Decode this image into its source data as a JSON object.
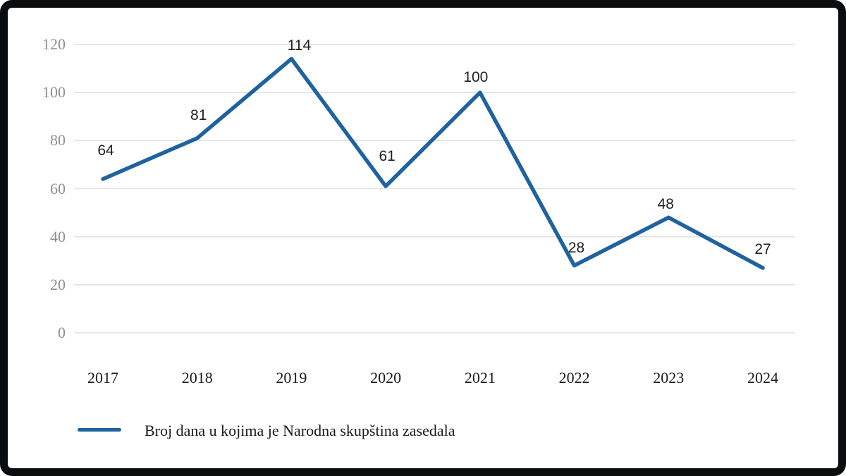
{
  "chart_data": {
    "type": "line",
    "title": "",
    "categories": [
      "2017",
      "2018",
      "2019",
      "2020",
      "2021",
      "2022",
      "2023",
      "2024"
    ],
    "series": [
      {
        "name": "Broj dana u kojima je Narodna skupština zasedala",
        "values": [
          64,
          81,
          114,
          61,
          100,
          28,
          48,
          27
        ]
      }
    ],
    "y_ticks": [
      "120",
      "100",
      "80",
      "60",
      "40",
      "20",
      "0"
    ],
    "ylim": [
      0,
      120
    ],
    "xlabel": "",
    "ylabel": "",
    "grid": "horizontal",
    "legend_position": "bottom-left",
    "colors": {
      "line": "#1e629f",
      "gridline": "#e2e2e2",
      "y_tick_text": "#8e8e8e",
      "x_tick_text": "#1b1b1b",
      "data_label_text": "#212121",
      "legend_text": "#1a1a1a",
      "frame_border": "#0b0c0d",
      "background": "#ffffff"
    }
  },
  "legend": {
    "label": "Broj dana u kojima je Narodna skupština zasedala"
  }
}
